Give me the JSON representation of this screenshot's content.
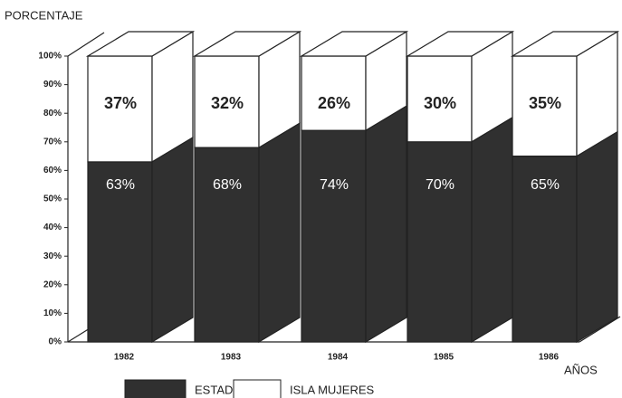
{
  "chart_data": {
    "type": "stacked_bar_3d",
    "ylabel": "PORCENTAJE",
    "xlabel": "AÑOS",
    "categories": [
      "1982",
      "1983",
      "1984",
      "1985",
      "1986"
    ],
    "series": [
      {
        "name": "ESTADO",
        "color": "#303030",
        "values": [
          63,
          68,
          74,
          70,
          65
        ],
        "value_labels": [
          "63%",
          "68%",
          "74%",
          "70%",
          "65%"
        ]
      },
      {
        "name": "ISLA MUJERES",
        "color": "#ffffff",
        "values": [
          37,
          32,
          26,
          30,
          35
        ],
        "value_labels": [
          "37%",
          "32%",
          "26%",
          "30%",
          "35%"
        ]
      }
    ],
    "ylim": [
      0,
      100
    ],
    "yticks": [
      {
        "value": 0,
        "label": "0%"
      },
      {
        "value": 10,
        "label": "10%"
      },
      {
        "value": 20,
        "label": "20%"
      },
      {
        "value": 30,
        "label": "30%"
      },
      {
        "value": 40,
        "label": "40%"
      },
      {
        "value": 50,
        "label": "50%"
      },
      {
        "value": 60,
        "label": "60%"
      },
      {
        "value": 70,
        "label": "70%"
      },
      {
        "value": 80,
        "label": "80%"
      },
      {
        "value": 90,
        "label": "90%"
      },
      {
        "value": 100,
        "label": "100%"
      }
    ],
    "grid": false
  }
}
